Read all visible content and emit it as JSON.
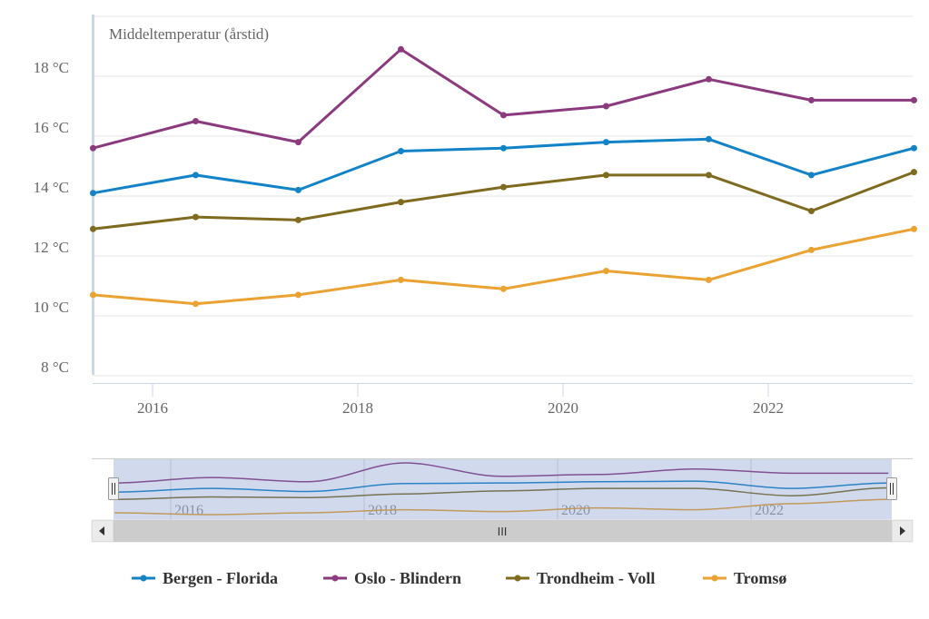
{
  "chart_data": {
    "type": "line",
    "title": "Middeltemperatur (årstid)",
    "xlabel": "",
    "ylabel": "",
    "x": [
      2015.42,
      2016.42,
      2017.42,
      2018.42,
      2019.42,
      2020.42,
      2021.42,
      2022.42,
      2023.42
    ],
    "xlim": [
      2015.42,
      2023.42
    ],
    "xticks": [
      2016,
      2018,
      2020,
      2022
    ],
    "xtick_labels": [
      "2016",
      "2018",
      "2020",
      "2022"
    ],
    "ylim": [
      8,
      20
    ],
    "yticks": [
      8,
      10,
      12,
      14,
      16,
      18
    ],
    "ytick_labels": [
      "8 °C",
      "10 °C",
      "12 °C",
      "14 °C",
      "16 °C",
      "18 °C"
    ],
    "grid": true,
    "legend_position": "bottom",
    "series": [
      {
        "name": "Bergen - Florida",
        "color": "#1283c6",
        "values": [
          14.1,
          14.7,
          14.2,
          15.5,
          15.6,
          15.8,
          15.9,
          14.7,
          15.6
        ]
      },
      {
        "name": "Oslo - Blindern",
        "color": "#8c3a7e",
        "values": [
          15.6,
          16.5,
          15.8,
          18.9,
          16.7,
          17.0,
          17.9,
          17.2,
          17.2
        ]
      },
      {
        "name": "Trondheim - Voll",
        "color": "#7f6b1f",
        "values": [
          12.9,
          13.3,
          13.2,
          13.8,
          14.3,
          14.7,
          14.7,
          13.5,
          14.8
        ]
      },
      {
        "name": "Tromsø",
        "color": "#eaa232",
        "values": [
          10.7,
          10.4,
          10.7,
          11.2,
          10.9,
          11.5,
          11.2,
          12.2,
          12.9
        ]
      }
    ],
    "navigator": {
      "xtick_labels": [
        "2016",
        "2018",
        "2020",
        "2022"
      ],
      "selection": [
        0,
        1
      ]
    }
  },
  "scrollbar": {
    "grip_label": "III"
  }
}
